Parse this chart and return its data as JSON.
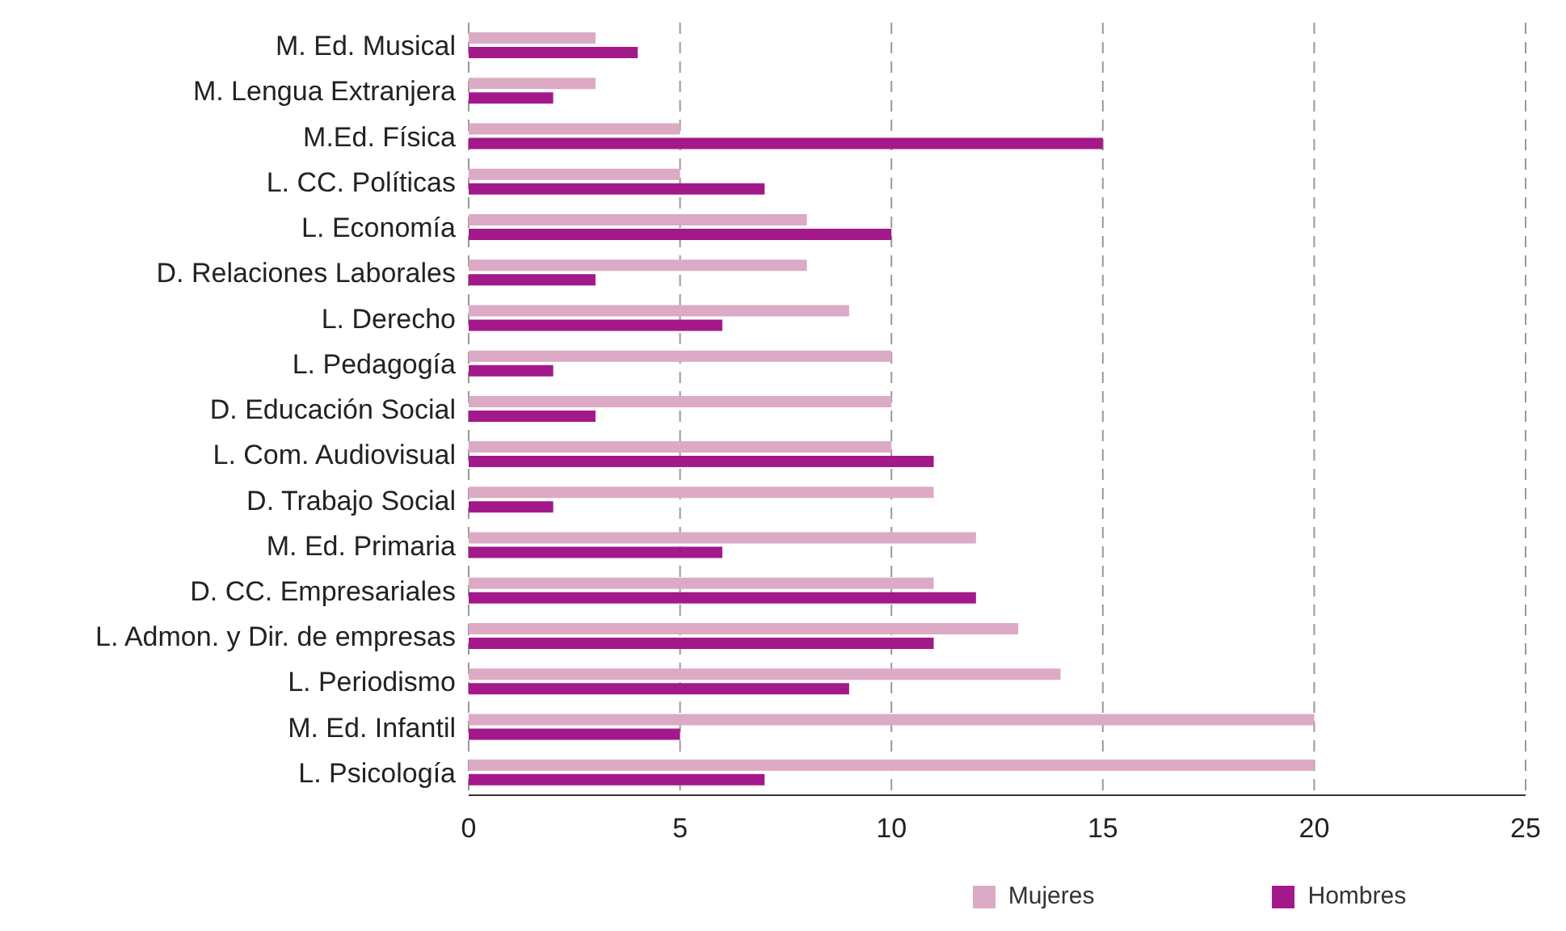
{
  "chart_data": {
    "type": "bar",
    "orientation": "horizontal",
    "categories": [
      "M. Ed. Musical",
      "M. Lengua Extranjera",
      "M.Ed. Física",
      "L. CC. Políticas",
      "L. Economía",
      "D. Relaciones Laborales",
      "L. Derecho",
      "L. Pedagogía",
      "D. Educación Social",
      "L. Com. Audiovisual",
      "D. Trabajo Social",
      "M. Ed. Primaria",
      "D. CC. Empresariales",
      "L. Admon. y Dir. de empresas",
      "L. Periodismo",
      "M. Ed. Infantil",
      "L. Psicología"
    ],
    "series": [
      {
        "name": "Mujeres",
        "color": "#dcaac4",
        "values": [
          3,
          3,
          5,
          5,
          8,
          8,
          9,
          10,
          10,
          10,
          11,
          12,
          11,
          13,
          14,
          20,
          20
        ]
      },
      {
        "name": "Hombres",
        "color": "#a4198a",
        "values": [
          4,
          2,
          15,
          7,
          10,
          3,
          6,
          2,
          3,
          11,
          2,
          6,
          12,
          11,
          9,
          5,
          7
        ]
      }
    ],
    "xlim": [
      0,
      25
    ],
    "xticks": [
      0,
      5,
      10,
      15,
      20,
      25
    ],
    "grid": "x",
    "legend": "bottom"
  }
}
